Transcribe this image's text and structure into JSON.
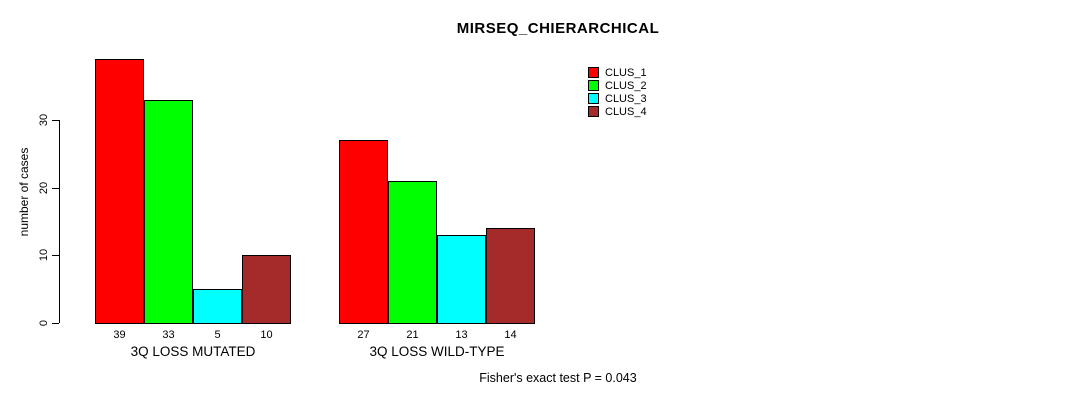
{
  "title": "MIRSEQ_CHIERARCHICAL",
  "footer_text": "Fisher's exact test P = 0.043",
  "chart_data": {
    "type": "bar",
    "title": "MIRSEQ_CHIERARCHICAL",
    "xlabel": "",
    "ylabel": "number of cases",
    "yticks": [
      0,
      10,
      20,
      30
    ],
    "ylim": [
      0,
      40
    ],
    "grid": false,
    "legend_position": "top-right",
    "bar_value_labels": true,
    "categories": [
      "3Q LOSS MUTATED",
      "3Q LOSS WILD-TYPE"
    ],
    "series": [
      {
        "name": "CLUS_1",
        "color": "#ff0000",
        "values": [
          39,
          27
        ]
      },
      {
        "name": "CLUS_2",
        "color": "#00ff00",
        "values": [
          33,
          21
        ]
      },
      {
        "name": "CLUS_3",
        "color": "#00ffff",
        "values": [
          5,
          13
        ]
      },
      {
        "name": "CLUS_4",
        "color": "#a52a2a",
        "values": [
          10,
          14
        ]
      }
    ],
    "annotation": "Fisher's exact test P = 0.043",
    "colors": {
      "background": "#ffffff",
      "axis": "#000000",
      "text": "#000000"
    }
  }
}
